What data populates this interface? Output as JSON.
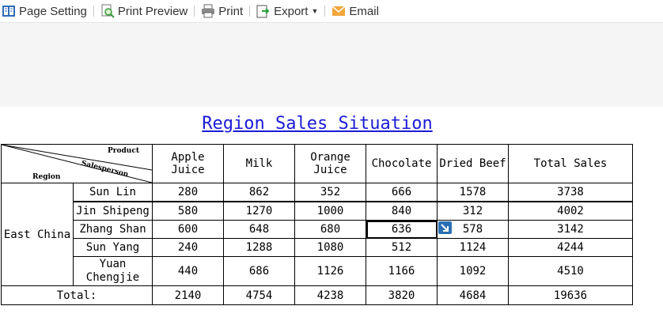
{
  "toolbar": {
    "page_setting": "Page Setting",
    "print_preview": "Print Preview",
    "print": "Print",
    "export": "Export",
    "email": "Email"
  },
  "report": {
    "title": "Region Sales Situation",
    "corner": {
      "product": "Product",
      "salesperson": "Salesperson",
      "region": "Region"
    },
    "columns": [
      "Apple Juice",
      "Milk",
      "Orange Juice",
      "Chocolate",
      "Dried Beef",
      "Total Sales"
    ],
    "region": "East China",
    "rows": [
      {
        "name": "Sun Lin",
        "values": [
          "280",
          "862",
          "352",
          "666",
          "1578",
          "3738"
        ]
      },
      {
        "name": "Jin Shipeng",
        "values": [
          "580",
          "1270",
          "1000",
          "840",
          "312",
          "4002"
        ]
      },
      {
        "name": "Zhang Shan",
        "values": [
          "600",
          "648",
          "680",
          "636",
          "578",
          "3142"
        ]
      },
      {
        "name": "Sun Yang",
        "values": [
          "240",
          "1288",
          "1080",
          "512",
          "1124",
          "4244"
        ]
      },
      {
        "name": "Yuan Chengjie",
        "values": [
          "440",
          "686",
          "1126",
          "1166",
          "1092",
          "4510"
        ]
      }
    ],
    "total_label": "Total:",
    "totals": [
      "2140",
      "4754",
      "4238",
      "3820",
      "4684",
      "19636"
    ]
  }
}
